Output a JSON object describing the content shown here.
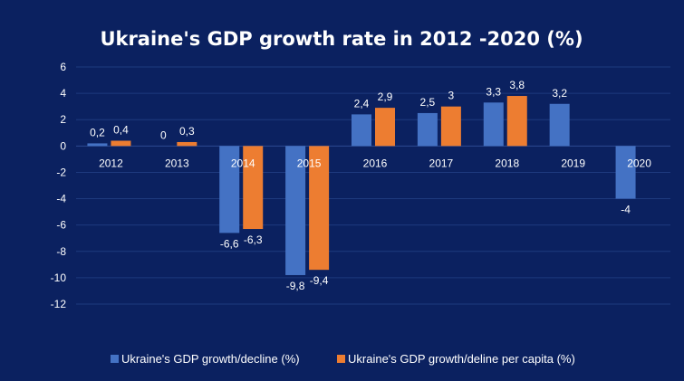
{
  "chart_data": {
    "type": "bar",
    "title": "Ukraine's  GDP  growth  rate  in  2012 -2020  (%)",
    "categories": [
      "2012",
      "2013",
      "2014",
      "2015",
      "2016",
      "2017",
      "2018",
      "2019",
      "2020"
    ],
    "series": [
      {
        "name": "Ukraine's GDP growth/decline (%)",
        "color": "#4472c4",
        "values": [
          0.2,
          0,
          -6.6,
          -9.8,
          2.4,
          2.5,
          3.3,
          3.2,
          -4
        ],
        "labels": [
          "0,2",
          "0",
          "-6,6",
          "-9,8",
          "2,4",
          "2,5",
          "3,3",
          "3,2",
          "-4"
        ]
      },
      {
        "name": "Ukraine's GDP growth/deline per capita (%)",
        "color": "#ed7d31",
        "values": [
          0.4,
          0.3,
          -6.3,
          -9.4,
          2.9,
          3,
          3.8,
          null,
          null
        ],
        "labels": [
          "0,4",
          "0,3",
          "-6,3",
          "-9,4",
          "2,9",
          "3",
          "3,8",
          "",
          ""
        ]
      }
    ],
    "ylim": [
      -12,
      6
    ],
    "yticks": [
      6,
      4,
      2,
      0,
      -2,
      -4,
      -6,
      -8,
      -10,
      -12
    ],
    "xlabel": "",
    "ylabel": "",
    "grid": true,
    "legend": "bottom"
  }
}
